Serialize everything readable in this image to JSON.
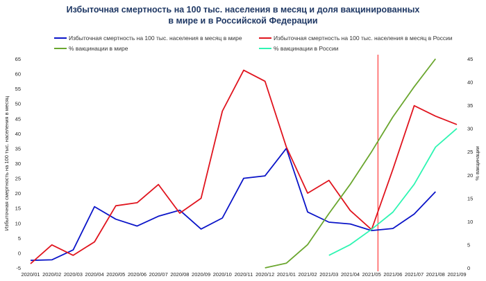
{
  "chart_data": {
    "type": "line",
    "title_line1": "Избыточная смертность на 100 тыс. населения в месяц и доля вакцинированных",
    "title_line2": "в мире и в Российской Федерации",
    "ylabel_left": "Избыточная смертность на 100 тыс. населения в месяц",
    "ylabel_right": "% вакцинации",
    "ylim_left": [
      -5,
      65
    ],
    "yticks_left": [
      -5,
      0,
      5,
      10,
      15,
      20,
      25,
      30,
      35,
      40,
      45,
      50,
      55,
      60,
      65
    ],
    "ylim_right": [
      0,
      45
    ],
    "yticks_right": [
      0,
      5,
      10,
      15,
      20,
      25,
      30,
      35,
      40,
      45
    ],
    "categories": [
      "2020/01",
      "2020/02",
      "2020/03",
      "2020/04",
      "2020/05",
      "2020/06",
      "2020/07",
      "2020/08",
      "2020/09",
      "2020/10",
      "2020/11",
      "2020/12",
      "2021/01",
      "2021/02",
      "2021/03",
      "2021/04",
      "2021/05",
      "2021/06",
      "2021/07",
      "2021/08",
      "2021/09"
    ],
    "vertical_marker": {
      "position": 16.3,
      "color": "#ff3b3b"
    },
    "series": [
      {
        "name": "Избыточная смертность на 100 тыс. населения в месяц в мире",
        "axis": "left",
        "color": "#0a14c8",
        "values": [
          -2.5,
          -2.3,
          1.0,
          15.5,
          11.3,
          9.0,
          12.3,
          14.3,
          8.0,
          11.7,
          25.0,
          25.8,
          35.0,
          13.7,
          10.3,
          9.7,
          7.5,
          8.2,
          13.0,
          20.5,
          null
        ]
      },
      {
        "name": "Избыточная смертность на 100 тыс. населения в месяц в России",
        "axis": "left",
        "color": "#e0141e",
        "values": [
          -3.6,
          2.7,
          -0.8,
          3.7,
          15.8,
          16.8,
          22.9,
          13.3,
          18.3,
          47.5,
          61.2,
          57.5,
          35.5,
          20.0,
          24.3,
          14.2,
          7.8,
          28.0,
          49.3,
          45.8,
          43.0
        ]
      },
      {
        "name": "% вакцинации в мире",
        "axis": "right",
        "color": "#6aa62e",
        "values": [
          null,
          null,
          null,
          null,
          null,
          null,
          null,
          null,
          null,
          null,
          null,
          0.0,
          1.0,
          5.0,
          11.7,
          18.0,
          25.0,
          32.5,
          39.0,
          45.0,
          null
        ]
      },
      {
        "name": "% вакцинации в России",
        "axis": "right",
        "color": "#2ef5b2",
        "values": [
          null,
          null,
          null,
          null,
          null,
          null,
          null,
          null,
          null,
          null,
          null,
          null,
          null,
          null,
          2.7,
          5.0,
          8.3,
          12.0,
          18.0,
          26.0,
          30.0
        ]
      }
    ]
  }
}
